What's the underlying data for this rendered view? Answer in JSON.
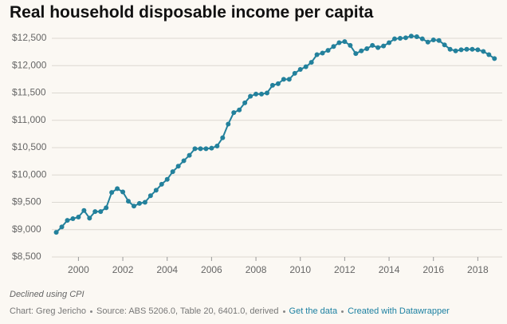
{
  "chart_data": {
    "type": "line",
    "title": "Real household disposable income per capita",
    "notes": "Declined using CPI",
    "credit": "Chart: Greg Jericho",
    "source": "Source: ABS 5206.0, Table 20, 6401.0, derived",
    "links": [
      "Get the data",
      "Created with Datawrapper"
    ],
    "x": [
      1999,
      1999.25,
      1999.5,
      1999.75,
      2000,
      2000.25,
      2000.5,
      2000.75,
      2001,
      2001.25,
      2001.5,
      2001.75,
      2002,
      2002.25,
      2002.5,
      2002.75,
      2003,
      2003.25,
      2003.5,
      2003.75,
      2004,
      2004.25,
      2004.5,
      2004.75,
      2005,
      2005.25,
      2005.5,
      2005.75,
      2006,
      2006.25,
      2006.5,
      2006.75,
      2007,
      2007.25,
      2007.5,
      2007.75,
      2008,
      2008.25,
      2008.5,
      2008.75,
      2009,
      2009.25,
      2009.5,
      2009.75,
      2010,
      2010.25,
      2010.5,
      2010.75,
      2011,
      2011.25,
      2011.5,
      2011.75,
      2012,
      2012.25,
      2012.5,
      2012.75,
      2013,
      2013.25,
      2013.5,
      2013.75,
      2014,
      2014.25,
      2014.5,
      2014.75,
      2015,
      2015.25,
      2015.5,
      2015.75,
      2016,
      2016.25,
      2016.5,
      2016.75,
      2017,
      2017.25,
      2017.5,
      2017.75,
      2018,
      2018.25,
      2018.5,
      2018.75
    ],
    "series": [
      {
        "name": "Real household disposable income per capita",
        "color": "#23819c",
        "values": [
          8950,
          9050,
          9170,
          9200,
          9230,
          9350,
          9210,
          9330,
          9330,
          9400,
          9680,
          9750,
          9690,
          9520,
          9430,
          9480,
          9500,
          9620,
          9720,
          9830,
          9920,
          10060,
          10160,
          10260,
          10360,
          10480,
          10480,
          10480,
          10490,
          10530,
          10680,
          10930,
          11140,
          11190,
          11320,
          11440,
          11480,
          11480,
          11500,
          11640,
          11670,
          11750,
          11750,
          11860,
          11930,
          11980,
          12060,
          12200,
          12230,
          12280,
          12350,
          12420,
          12440,
          12370,
          12220,
          12270,
          12310,
          12370,
          12330,
          12360,
          12420,
          12490,
          12500,
          12510,
          12540,
          12530,
          12490,
          12430,
          12470,
          12460,
          12380,
          12300,
          12270,
          12290,
          12300,
          12300,
          12290,
          12260,
          12200,
          12130
        ]
      }
    ],
    "xlim": [
      1998.8,
      2019.1
    ],
    "xticks": [
      2000,
      2002,
      2004,
      2006,
      2008,
      2010,
      2012,
      2014,
      2016,
      2018
    ],
    "ylim": [
      8500,
      12500
    ],
    "yticks": [
      {
        "value": 8500,
        "label": "$8,500"
      },
      {
        "value": 9000,
        "label": "$9,000"
      },
      {
        "value": 9500,
        "label": "$9,500"
      },
      {
        "value": 10000,
        "label": "$10,000"
      },
      {
        "value": 10500,
        "label": "$10,500"
      },
      {
        "value": 11000,
        "label": "$11,000"
      },
      {
        "value": 11500,
        "label": "$11,500"
      },
      {
        "value": 12000,
        "label": "$12,000"
      },
      {
        "value": 12500,
        "label": "$12,500"
      }
    ],
    "grid": true
  }
}
